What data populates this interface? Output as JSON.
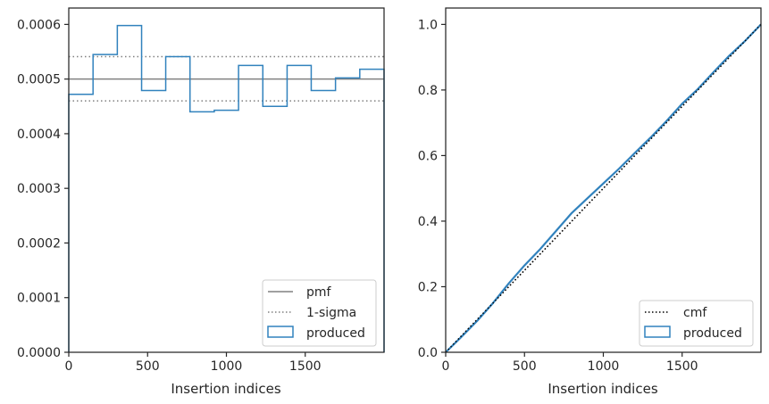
{
  "colors": {
    "produced": "#3182bd",
    "pmf": "#808080",
    "sigma": "#808080",
    "cmf": "#000000",
    "axes": "#262626"
  },
  "chart_data": [
    {
      "type": "step-histogram",
      "title": "",
      "xlabel": "Insertion indices",
      "ylabel": "",
      "xlim": [
        0,
        2000
      ],
      "ylim": [
        0,
        0.00063
      ],
      "x_ticks": [
        0,
        500,
        1000,
        1500
      ],
      "x_tick_labels": [
        "0",
        "500",
        "1000",
        "1500"
      ],
      "y_ticks": [
        0,
        0.0001,
        0.0002,
        0.0003,
        0.0004,
        0.0005,
        0.0006
      ],
      "y_tick_labels": [
        "0.0000",
        "0.0001",
        "0.0002",
        "0.0003",
        "0.0004",
        "0.0005",
        "0.0006"
      ],
      "bin_edges": [
        0,
        154,
        308,
        462,
        615,
        769,
        923,
        1077,
        1231,
        1385,
        1538,
        1692,
        1846,
        2000
      ],
      "series": [
        {
          "name": "produced",
          "values": [
            0.000472,
            0.000545,
            0.000598,
            0.000479,
            0.000541,
            0.00044,
            0.000443,
            0.000525,
            0.00045,
            0.000525,
            0.000479,
            0.000502,
            0.000518
          ]
        }
      ],
      "hlines": [
        {
          "name": "pmf",
          "y": 0.0005,
          "style": "solid"
        },
        {
          "name": "1-sigma",
          "y": 0.000541,
          "style": "dotted"
        },
        {
          "name": "1-sigma-lower",
          "y": 0.00046,
          "style": "dotted"
        }
      ],
      "legend": {
        "placement": "lower-right",
        "entries": [
          {
            "label": "pmf",
            "style": "solid-line"
          },
          {
            "label": "1-sigma",
            "style": "dotted-line"
          },
          {
            "label": "produced",
            "style": "box"
          }
        ]
      },
      "grid": false
    },
    {
      "type": "line",
      "title": "",
      "xlabel": "Insertion indices",
      "ylabel": "",
      "xlim": [
        0,
        2000
      ],
      "ylim": [
        0,
        1.05
      ],
      "x_ticks": [
        0,
        500,
        1000,
        1500
      ],
      "x_tick_labels": [
        "0",
        "500",
        "1000",
        "1500"
      ],
      "y_ticks": [
        0,
        0.2,
        0.4,
        0.6,
        0.8,
        1.0
      ],
      "y_tick_labels": [
        "0.0",
        "0.2",
        "0.4",
        "0.6",
        "0.8",
        "1.0"
      ],
      "series": [
        {
          "name": "cmf",
          "style": "dotted",
          "x": [
            0,
            2000
          ],
          "y": [
            0,
            1.0
          ]
        },
        {
          "name": "produced",
          "style": "solid",
          "x": [
            0,
            100,
            200,
            300,
            400,
            500,
            600,
            700,
            800,
            900,
            1000,
            1100,
            1200,
            1300,
            1400,
            1500,
            1600,
            1700,
            1800,
            1900,
            2000
          ],
          "y": [
            0,
            0.047,
            0.096,
            0.15,
            0.21,
            0.265,
            0.315,
            0.37,
            0.425,
            0.47,
            0.515,
            0.56,
            0.608,
            0.655,
            0.705,
            0.758,
            0.803,
            0.855,
            0.905,
            0.95,
            1.0
          ]
        }
      ],
      "legend": {
        "placement": "lower-right",
        "entries": [
          {
            "label": "cmf",
            "style": "dotted-line"
          },
          {
            "label": "produced",
            "style": "box"
          }
        ]
      },
      "grid": false
    }
  ]
}
